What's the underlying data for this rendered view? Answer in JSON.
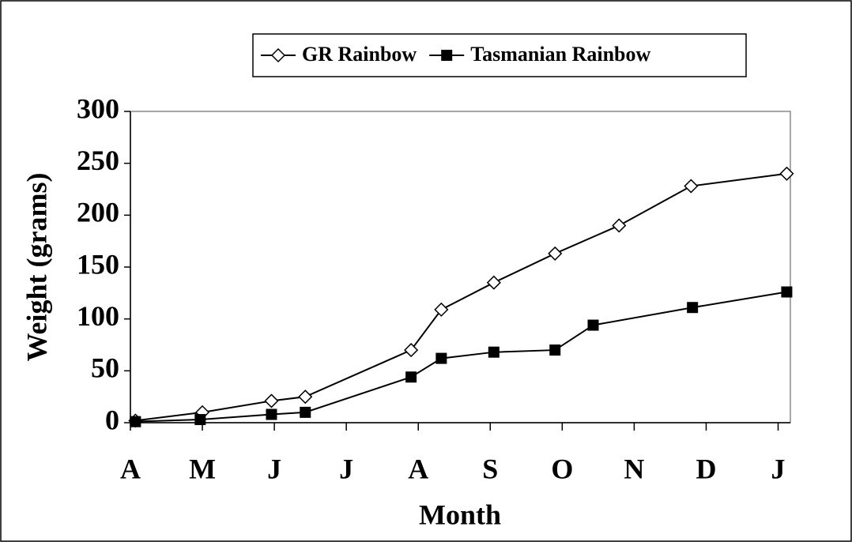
{
  "chart_data": {
    "type": "line",
    "x_label": "Month",
    "y_label": "Weight (grams)",
    "xlim": [
      0,
      9.17
    ],
    "ylim": [
      0,
      300
    ],
    "xticks": [
      {
        "value": 0,
        "label": "A"
      },
      {
        "value": 1,
        "label": "M"
      },
      {
        "value": 2,
        "label": "J"
      },
      {
        "value": 3,
        "label": "J"
      },
      {
        "value": 4,
        "label": "A"
      },
      {
        "value": 5,
        "label": "S"
      },
      {
        "value": 6,
        "label": "O"
      },
      {
        "value": 7,
        "label": "N"
      },
      {
        "value": 8,
        "label": "D"
      },
      {
        "value": 9,
        "label": "J"
      }
    ],
    "yticks": [
      0,
      50,
      100,
      150,
      200,
      250,
      300
    ],
    "grid": false,
    "legend": "top",
    "series": [
      {
        "name": "GR Rainbow",
        "color": "#000000",
        "marker": "diamond-open",
        "x": [
          0.07,
          1.0,
          1.96,
          2.43,
          3.9,
          4.32,
          5.05,
          5.9,
          6.79,
          7.79,
          9.12
        ],
        "values": [
          2,
          10,
          21,
          25,
          70,
          109,
          135,
          163,
          190,
          228,
          240
        ]
      },
      {
        "name": "Tasmanian Rainbow",
        "color": "#000000",
        "marker": "square",
        "x": [
          0.07,
          0.97,
          1.96,
          2.43,
          3.9,
          4.32,
          5.05,
          5.9,
          6.43,
          7.81,
          9.12
        ],
        "values": [
          1,
          3,
          8,
          10,
          44,
          62,
          68,
          70,
          94,
          111,
          126
        ]
      }
    ]
  }
}
